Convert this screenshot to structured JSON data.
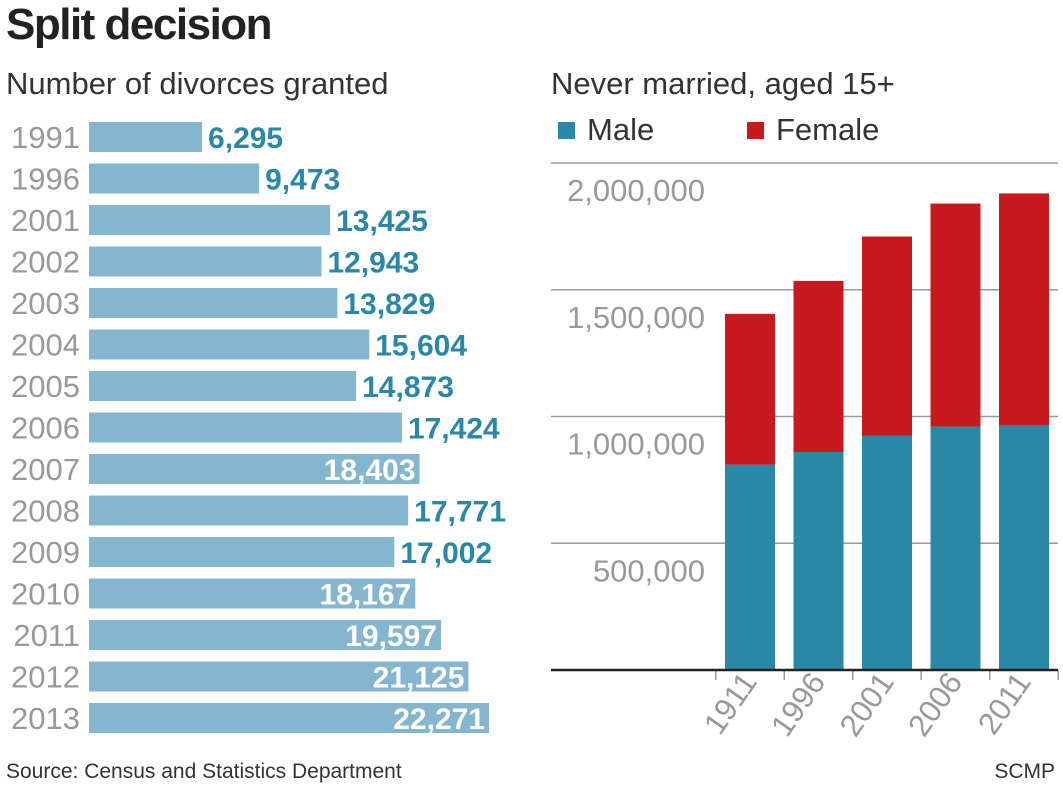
{
  "title": "Split decision",
  "source": "Source: Census and Statistics Department",
  "credit": "SCMP",
  "colors": {
    "divorce_bar": "#85b6d0",
    "label_outside": "#2a87a6",
    "label_inside": "#ffffff",
    "male": "#2a87a6",
    "female": "#c8191e",
    "year_label": "#999999",
    "grid": "#999999"
  },
  "chart_data": [
    {
      "type": "bar",
      "orientation": "horizontal",
      "title": "Number of divorces granted",
      "categories": [
        "1991",
        "1996",
        "2001",
        "2002",
        "2003",
        "2004",
        "2005",
        "2006",
        "2007",
        "2008",
        "2009",
        "2010",
        "2011",
        "2012",
        "2013"
      ],
      "values": [
        6295,
        9473,
        13425,
        12943,
        13829,
        15604,
        14873,
        17424,
        18403,
        17771,
        17002,
        18167,
        19597,
        21125,
        22271
      ],
      "value_labels": [
        "6,295",
        "9,473",
        "13,425",
        "12,943",
        "13,829",
        "15,604",
        "14,873",
        "17,424",
        "18,403",
        "17,771",
        "17,002",
        "18,167",
        "19,597",
        "21,125",
        "22,271"
      ],
      "labels_inside": [
        false,
        false,
        false,
        false,
        false,
        false,
        false,
        false,
        true,
        false,
        false,
        true,
        true,
        true,
        true
      ]
    },
    {
      "type": "bar",
      "stacked": true,
      "title": "Never married, aged 15+",
      "categories": [
        "1911",
        "1996",
        "2001",
        "2006",
        "2011"
      ],
      "series": [
        {
          "name": "Male",
          "values": [
            810000,
            860000,
            925000,
            960000,
            965000
          ]
        },
        {
          "name": "Female",
          "values": [
            595000,
            675000,
            785000,
            880000,
            915000
          ]
        }
      ],
      "ylim": [
        0,
        2000000
      ],
      "yticks": [
        500000,
        1000000,
        1500000,
        2000000
      ],
      "ytick_labels": [
        "500,000",
        "1,000,000",
        "1,500,000",
        "2,000,000"
      ],
      "grid": true
    }
  ]
}
